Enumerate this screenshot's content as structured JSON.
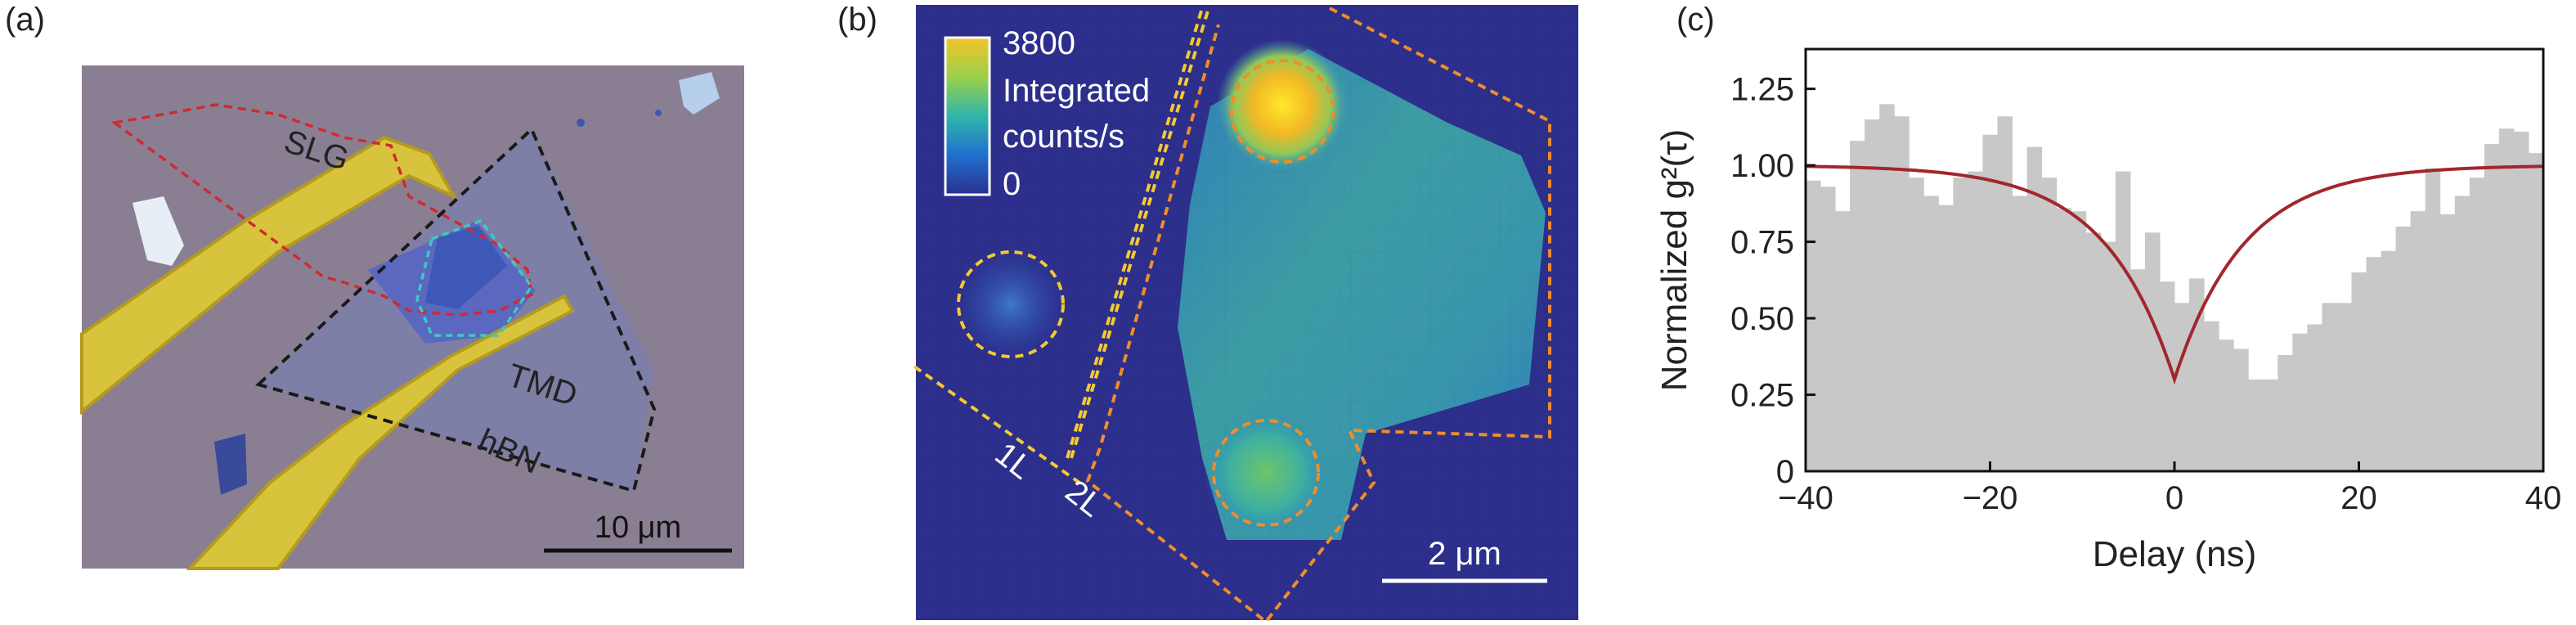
{
  "panel_labels": {
    "a": "(a)",
    "b": "(b)",
    "c": "(c)"
  },
  "panel_a": {
    "labels": {
      "slg": "SLG",
      "tmd": "TMD",
      "hbn": "hBN"
    },
    "scalebar": "10 μm"
  },
  "panel_b": {
    "colorbar": {
      "max": "3800",
      "min": "0",
      "label_lines": [
        "Integrated",
        "counts/s"
      ]
    },
    "layer_labels": {
      "one": "1L",
      "two": "2L"
    },
    "scalebar": "2 μm"
  },
  "chart_data": {
    "type": "bar",
    "xlabel": "Delay (ns)",
    "ylabel": "Normalized g²(τ)",
    "xlim": [
      -40,
      40
    ],
    "ylim": [
      0,
      1.38
    ],
    "xticks": [
      -40,
      -20,
      0,
      20,
      40
    ],
    "xtick_labels": [
      "−40",
      "−20",
      "0",
      "20",
      "40"
    ],
    "yticks": [
      0,
      0.25,
      0.5,
      0.75,
      1.0,
      1.25
    ],
    "ytick_labels": [
      "0",
      "0.25",
      "0.50",
      "0.75",
      "1.00",
      "1.25"
    ],
    "bin_width": 1.6,
    "bin_start": -40,
    "histogram_values": [
      0.95,
      0.93,
      0.85,
      1.08,
      1.15,
      1.2,
      1.16,
      0.96,
      0.9,
      0.87,
      0.96,
      0.98,
      1.1,
      1.16,
      0.9,
      1.06,
      0.96,
      0.86,
      0.85,
      0.78,
      0.75,
      0.98,
      0.66,
      0.78,
      0.62,
      0.55,
      0.63,
      0.49,
      0.43,
      0.4,
      0.3,
      0.3,
      0.38,
      0.45,
      0.48,
      0.55,
      0.55,
      0.65,
      0.7,
      0.72,
      0.8,
      0.85,
      0.99,
      0.84,
      0.9,
      0.96,
      1.07,
      1.12,
      1.11,
      1.04,
      1.06
    ],
    "histogram_color": "#c8c8c8",
    "fit": {
      "color": "#a3262e",
      "g0": 0.3,
      "tau_ns": 7.5
    }
  }
}
